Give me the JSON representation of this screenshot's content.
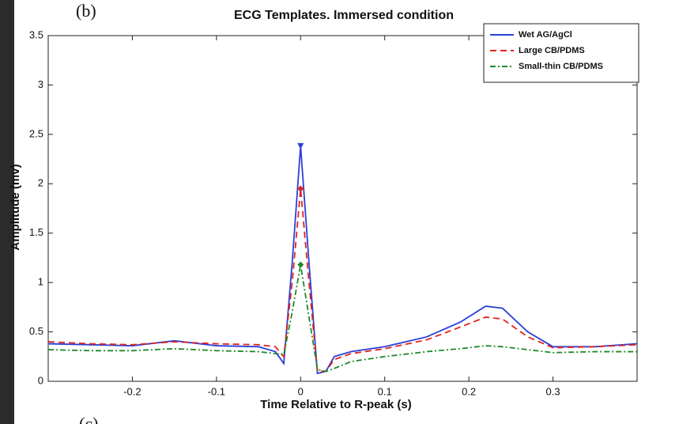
{
  "chart_data": {
    "type": "line",
    "panel_label": "(b)",
    "next_panel_label": "(c)",
    "title": "ECG Templates. Immersed condition",
    "xlabel": "Time Relative to R-peak (s)",
    "ylabel": "Amplitude (mv)",
    "x": [
      -0.3,
      -0.25,
      -0.2,
      -0.15,
      -0.1,
      -0.05,
      -0.03,
      -0.02,
      -0.01,
      0,
      0.01,
      0.02,
      0.03,
      0.04,
      0.06,
      0.1,
      0.15,
      0.19,
      0.22,
      0.24,
      0.27,
      0.3,
      0.35,
      0.4
    ],
    "series": [
      {
        "name": "Wet AG/AgCl",
        "color": "#2b3fd8",
        "dash": "solid",
        "marker": "triangle",
        "values": [
          0.38,
          0.37,
          0.36,
          0.41,
          0.36,
          0.35,
          0.3,
          0.18,
          1.2,
          2.38,
          1.2,
          0.08,
          0.1,
          0.25,
          0.3,
          0.35,
          0.45,
          0.6,
          0.76,
          0.74,
          0.5,
          0.35,
          0.35,
          0.38
        ]
      },
      {
        "name": "Large CB/PDMS",
        "color": "#e0241c",
        "dash": "dashed",
        "marker": "diamond",
        "values": [
          0.4,
          0.38,
          0.37,
          0.4,
          0.38,
          0.37,
          0.35,
          0.25,
          1.0,
          1.95,
          1.0,
          0.1,
          0.1,
          0.22,
          0.28,
          0.33,
          0.42,
          0.55,
          0.65,
          0.63,
          0.45,
          0.34,
          0.35,
          0.37
        ]
      },
      {
        "name": "Small-thin CB/PDMS",
        "color": "#1f8a2a",
        "dash": "dashdot",
        "marker": "star",
        "values": [
          0.32,
          0.31,
          0.31,
          0.33,
          0.31,
          0.3,
          0.28,
          0.27,
          0.7,
          1.18,
          0.65,
          0.12,
          0.1,
          0.13,
          0.2,
          0.25,
          0.3,
          0.33,
          0.36,
          0.35,
          0.32,
          0.29,
          0.3,
          0.3
        ]
      }
    ],
    "xlim": [
      -0.3,
      0.4
    ],
    "xticks": [
      -0.2,
      -0.1,
      0,
      0.1,
      0.2,
      0.3
    ],
    "ylim": [
      0,
      3.5
    ],
    "yticks": [
      0,
      0.5,
      1,
      1.5,
      2,
      2.5,
      3,
      3.5
    ],
    "legend": "upper right",
    "grid": false
  }
}
